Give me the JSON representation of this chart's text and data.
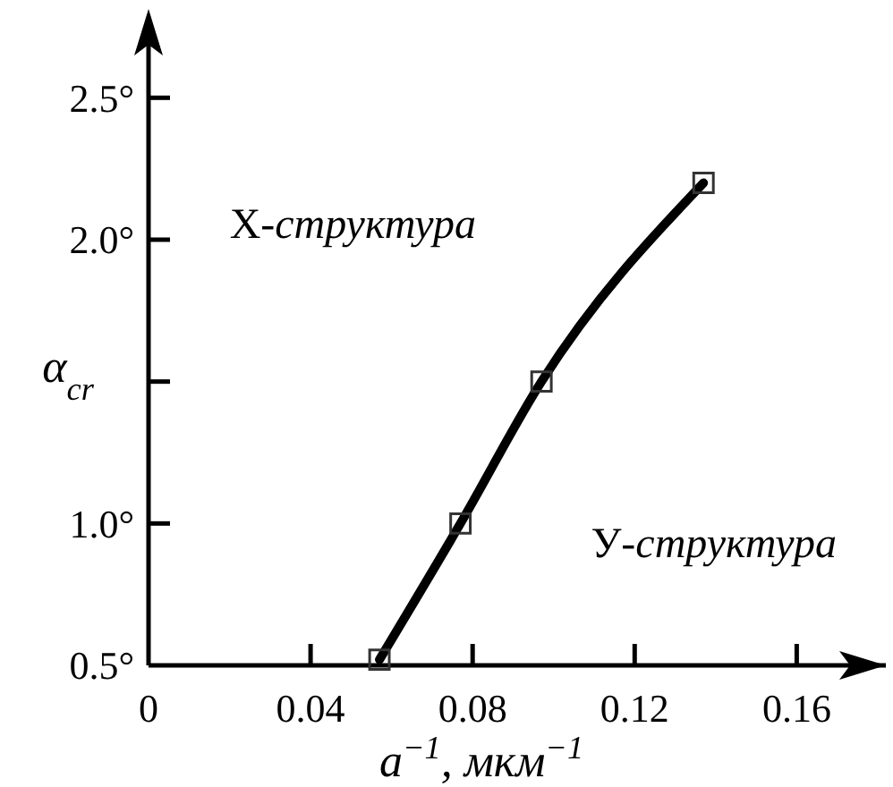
{
  "chart_data": {
    "type": "line",
    "xlabel": "a$^{−1}$, мкм$^{−1}$",
    "ylabel": "α$_{cr}$",
    "x": [
      0.057,
      0.077,
      0.097,
      0.137
    ],
    "series": [
      {
        "color": "#000000",
        "values": [
          0.52,
          1.0,
          1.5,
          2.2
        ]
      }
    ],
    "xlim": [
      0,
      0.182
    ],
    "ylim": [
      0.5,
      2.75
    ],
    "xticks": [
      0,
      0.04,
      0.08,
      0.12,
      0.16
    ],
    "yticks": [
      {
        "value": 0.5,
        "label": "0.5°"
      },
      {
        "value": 1.0,
        "label": "1.0°"
      },
      {
        "value": 1.5,
        "label": null
      },
      {
        "value": 2.0,
        "label": "2.0°"
      },
      {
        "value": 2.5,
        "label": "2.5°"
      }
    ],
    "annotations": [
      "X-структура",
      "У-структура"
    ],
    "marker": "square",
    "line_style": "solid",
    "grid": false
  }
}
